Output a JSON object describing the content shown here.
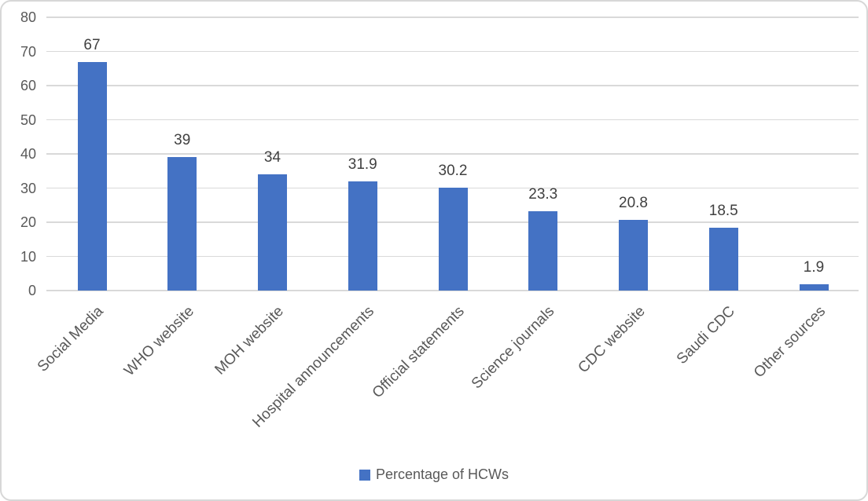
{
  "chart_data": {
    "type": "bar",
    "title": "",
    "xlabel": "",
    "ylabel": "",
    "categories": [
      "Social Media",
      "WHO website",
      "MOH website",
      "Hospital announcements",
      "Official statements",
      "Science journals",
      "CDC website",
      "Saudi CDC",
      "Other sources"
    ],
    "values": [
      67,
      39,
      34,
      31.9,
      30.2,
      23.3,
      20.8,
      18.5,
      1.9
    ],
    "data_labels": [
      "67",
      "39",
      "34",
      "31.9",
      "30.2",
      "23.3",
      "20.8",
      "18.5",
      "1.9"
    ],
    "ylim": [
      0,
      80
    ],
    "yticks": [
      0,
      10,
      20,
      30,
      40,
      50,
      60,
      70,
      80
    ],
    "grid": true,
    "legend_position": "bottom"
  },
  "legend": {
    "label": "Percentage of HCWs"
  },
  "colors": {
    "bar": "#4472c4",
    "gridline": "#d9d9d9",
    "axis_text": "#595959",
    "data_label_text": "#404040",
    "border": "#d7d7d7",
    "background": "#ffffff"
  }
}
